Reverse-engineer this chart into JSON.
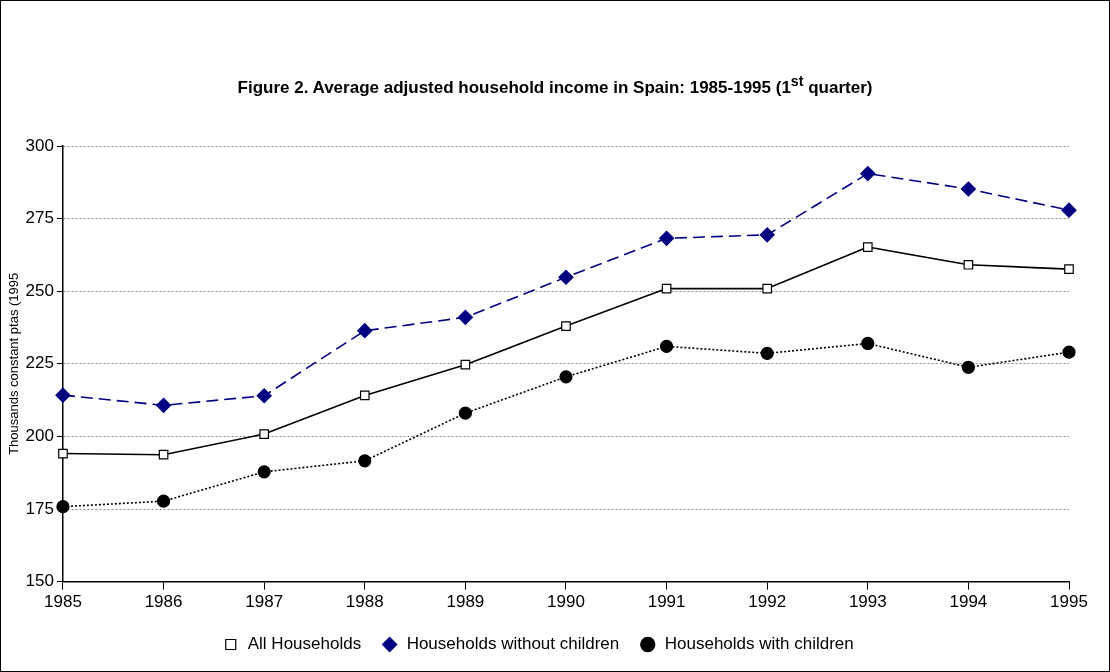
{
  "chart_data": {
    "type": "line",
    "title": "Figure 2. Average adjusted household income in Spain: 1985-1995 (1$^{st}$ quarter)",
    "ylabel": "Thousands constant ptas (1995",
    "categories": [
      "1985",
      "1986",
      "1987",
      "1988",
      "1989",
      "1990",
      "1991",
      "1992",
      "1993",
      "1994",
      "1995"
    ],
    "series": [
      {
        "name": "All Households",
        "color": "#000000",
        "marker": "square",
        "line_style": "solid",
        "values": [
          194.1,
          193.7,
          200.8,
          214.1,
          224.7,
          238,
          250.9,
          250.9,
          265.2,
          259.1,
          257.6
        ]
      },
      {
        "name": "Households without children",
        "color": "#000080",
        "marker": "diamond",
        "line_style": "dashed",
        "values": [
          214.2,
          210.7,
          214,
          236.4,
          241,
          254.8,
          268.2,
          269.4,
          290.5,
          285.2,
          277.9
        ]
      },
      {
        "name": "Households with children",
        "color": "#000000",
        "marker": "circle",
        "line_style": "dotted",
        "values": [
          175.8,
          177.7,
          187.8,
          191.6,
          208,
          220.5,
          231,
          228.6,
          232,
          223.8,
          229
        ]
      }
    ],
    "ylim": [
      150,
      300
    ],
    "yticks": [
      150,
      175,
      200,
      225,
      250,
      275,
      300
    ],
    "grid": "y",
    "legend": "bottom"
  }
}
